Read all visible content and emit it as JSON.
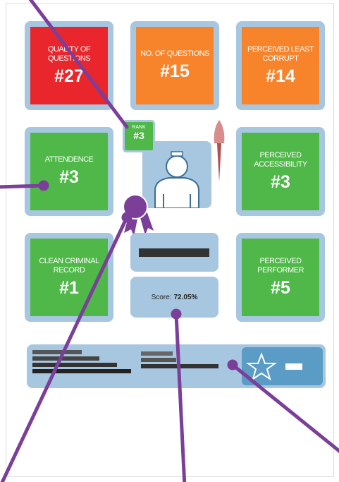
{
  "tiles": [
    {
      "label": "QUALITY OF QUESTIONS",
      "value": "#27",
      "color": "#e8262b"
    },
    {
      "label": "NO. OF QUESTIONS",
      "value": "#15",
      "color": "#f7842b"
    },
    {
      "label": "PERCEIVED LEAST CORRUPT",
      "value": "#14",
      "color": "#f7842b"
    },
    {
      "label": "ATTENDENCE",
      "value": "#3",
      "color": "#4fb848"
    },
    {
      "label": "PERCEIVED ACCESSIBILITY",
      "value": "#3",
      "color": "#4fb848"
    },
    {
      "label": "CLEAN CRIMINAL RECORD",
      "value": "#1",
      "color": "#4fb848"
    },
    {
      "label": "PERCEIVED PERFORMER",
      "value": "#5",
      "color": "#4fb848"
    }
  ],
  "rank": {
    "label": "RANK",
    "value": "#3"
  },
  "score": {
    "label": "Score:",
    "value": "72.05%"
  }
}
